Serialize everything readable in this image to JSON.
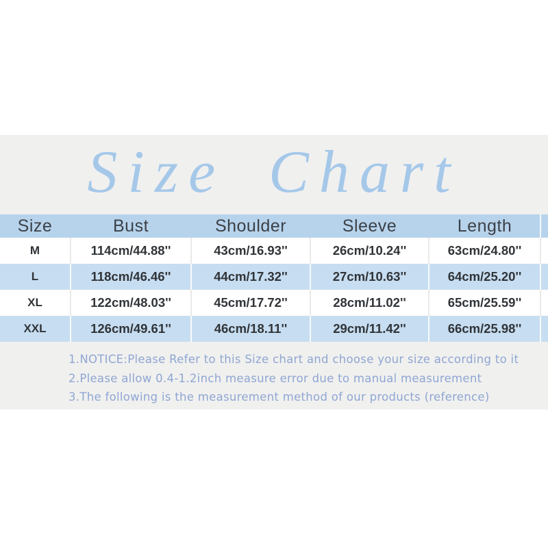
{
  "title": {
    "text": "Size Chart"
  },
  "colors": {
    "panel_bg": "#f0f0ef",
    "header_row_bg": "#b7d3ec",
    "stripe_row_bg": "#c7ddf1",
    "title_blue": "#a5c8e9",
    "notes_blue": "#8fa6d2",
    "table_text": "#303438"
  },
  "size_table": {
    "headers": [
      "Size",
      "Bust",
      "Shoulder",
      "Sleeve",
      "Length"
    ],
    "rows": [
      {
        "label": "M",
        "cells": [
          "114cm/44.88''",
          "43cm/16.93''",
          "26cm/10.24''",
          "63cm/24.80''"
        ]
      },
      {
        "label": "L",
        "cells": [
          "118cm/46.46''",
          "44cm/17.32''",
          "27cm/10.63''",
          "64cm/25.20''"
        ]
      },
      {
        "label": "XL",
        "cells": [
          "122cm/48.03''",
          "45cm/17.72''",
          "28cm/11.02''",
          "65cm/25.59''"
        ]
      },
      {
        "label": "XXL",
        "cells": [
          "126cm/49.61''",
          "46cm/18.11''",
          "29cm/11.42''",
          "66cm/25.98''"
        ]
      }
    ]
  },
  "notes": {
    "lines": [
      "1.NOTICE:Please Refer to this Size chart and choose your size according to it",
      "2.Please allow 0.4-1.2inch measure error due to manual measurement",
      "3.The following is the measurement method of our products (reference)"
    ]
  },
  "chart_data": {
    "type": "table",
    "title": "Size Chart",
    "columns": [
      "Size",
      "Bust",
      "Shoulder",
      "Sleeve",
      "Length"
    ],
    "rows": [
      [
        "M",
        "114cm/44.88''",
        "43cm/16.93''",
        "26cm/10.24''",
        "63cm/24.80''"
      ],
      [
        "L",
        "118cm/46.46''",
        "44cm/17.32''",
        "27cm/10.63''",
        "64cm/25.20''"
      ],
      [
        "XL",
        "122cm/48.03''",
        "45cm/17.72''",
        "28cm/11.02''",
        "65cm/25.59''"
      ],
      [
        "XXL",
        "126cm/49.61''",
        "46cm/18.11''",
        "29cm/11.42''",
        "66cm/25.98''"
      ]
    ],
    "notes": [
      "1.NOTICE:Please Refer to this Size chart and choose your size according to it",
      "2.Please allow 0.4-1.2inch measure error due to manual measurement",
      "3.The following is the measurement method of our products (reference)"
    ],
    "layout": {
      "header_fill": "#b7d3ec",
      "zebra_fill": "#c7ddf1",
      "grid": "vertical-separators-only"
    }
  }
}
